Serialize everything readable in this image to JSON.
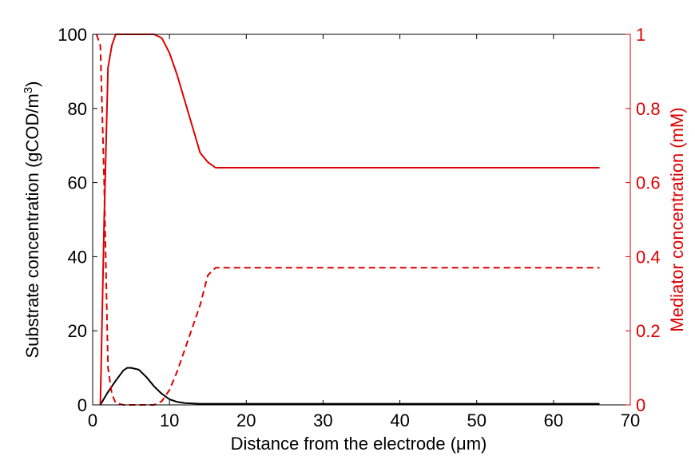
{
  "chart_data": {
    "type": "line",
    "xlabel": "Distance from the electrode (μm)",
    "ylabel_left": "Substrate concentration (gCOD/m3)",
    "ylabel_right": "Mediator concentration (mM)",
    "xlim": [
      0,
      70
    ],
    "ylim_left": [
      0,
      100
    ],
    "ylim_right": [
      0,
      1
    ],
    "xticks": [
      0,
      10,
      20,
      30,
      40,
      50,
      60,
      70
    ],
    "yticks_left": [
      0,
      20,
      40,
      60,
      80,
      100
    ],
    "yticks_right": [
      0,
      0.2,
      0.4,
      0.6,
      0.8,
      1
    ],
    "ytick_labels_right": [
      "0",
      "0.2",
      "0.4",
      "0.6",
      "0.8",
      "1"
    ],
    "grid": false,
    "colors": {
      "left": "#000000",
      "right": "#dd0000",
      "frame": "#000000"
    },
    "series": [
      {
        "axis": "left",
        "color": "#000000",
        "style": "solid",
        "x": [
          1,
          2,
          3,
          4,
          4.5,
          5,
          6,
          7,
          8,
          9,
          10,
          11,
          12,
          14,
          16,
          20,
          30,
          40,
          50,
          60,
          66
        ],
        "y": [
          0,
          3.5,
          6.5,
          9.3,
          10,
          10,
          9.5,
          7.5,
          5,
          3,
          1.5,
          0.8,
          0.5,
          0.3,
          0.3,
          0.3,
          0.3,
          0.3,
          0.3,
          0.3,
          0.3
        ]
      },
      {
        "axis": "right",
        "color": "#dd0000",
        "style": "solid",
        "x": [
          1,
          1.5,
          2,
          2.5,
          3,
          3.5,
          8,
          9,
          10,
          11,
          12,
          13,
          14,
          15,
          16,
          20,
          30,
          40,
          50,
          60,
          66
        ],
        "y": [
          0,
          0.5,
          0.91,
          0.97,
          1,
          1,
          1,
          0.99,
          0.95,
          0.89,
          0.82,
          0.75,
          0.68,
          0.655,
          0.64,
          0.64,
          0.64,
          0.64,
          0.64,
          0.64,
          0.64
        ]
      },
      {
        "axis": "right",
        "color": "#dd0000",
        "style": "dashed",
        "x": [
          0.5,
          1,
          1.5,
          2,
          2.5,
          3,
          4,
          5,
          6,
          7,
          8,
          9,
          10,
          11,
          12,
          13,
          14,
          15,
          16,
          20,
          30,
          40,
          50,
          60,
          66
        ],
        "y": [
          1,
          0.97,
          0.6,
          0.1,
          0.03,
          0.005,
          0,
          0,
          0,
          0,
          0,
          0.01,
          0.04,
          0.09,
          0.15,
          0.21,
          0.27,
          0.35,
          0.37,
          0.37,
          0.37,
          0.37,
          0.37,
          0.37,
          0.37
        ]
      }
    ]
  }
}
